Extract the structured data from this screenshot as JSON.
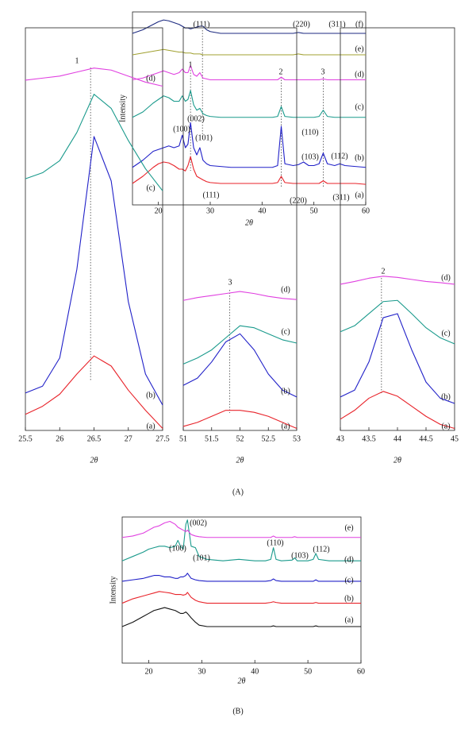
{
  "chart_data": [
    {
      "type": "line",
      "x_label": "2θ",
      "y_label": "Intensity",
      "xlim": [
        15,
        60
      ],
      "ylim": [
        -8,
        100
      ],
      "xticks": [
        20,
        30,
        40,
        50,
        60
      ],
      "x": [
        15,
        17,
        19,
        20,
        21,
        22,
        23,
        24,
        24.6,
        25.2,
        25.7,
        26.2,
        26.8,
        27.4,
        28,
        28.6,
        29.3,
        30,
        32,
        34,
        36,
        38,
        40,
        42,
        43,
        43.7,
        44.4,
        46,
        47,
        48,
        49,
        50,
        51,
        51.8,
        52.6,
        54,
        55,
        56,
        58,
        60
      ],
      "series": [
        {
          "name": "(a)",
          "color": "#e8232a",
          "values": [
            4,
            8,
            13,
            15,
            16,
            15.5,
            14,
            12,
            12,
            11,
            14,
            19,
            12,
            8,
            7,
            6,
            5,
            4.5,
            4,
            4,
            4,
            4,
            4,
            4,
            4.5,
            8,
            4.5,
            4,
            4,
            4,
            4,
            4,
            4,
            5.5,
            4,
            4,
            4,
            4,
            4,
            3.5
          ]
        },
        {
          "name": "(b)",
          "color": "#2020c8",
          "values": [
            13,
            17,
            22,
            23,
            24,
            25,
            24,
            25,
            31,
            24,
            26,
            38,
            24,
            20,
            24,
            17,
            15,
            14,
            13.5,
            13,
            13,
            13,
            13,
            13,
            14,
            36,
            15,
            14,
            14.5,
            16,
            14,
            14,
            15,
            21,
            15,
            14,
            15,
            14,
            13.5,
            13
          ]
        },
        {
          "name": "(c)",
          "color": "#1a9a8c",
          "values": [
            41,
            44,
            49,
            51,
            53,
            52,
            50,
            50,
            53,
            50,
            51,
            56,
            48,
            45,
            46,
            43,
            42,
            41.5,
            41,
            41,
            41,
            41,
            41,
            41,
            41.5,
            47,
            41.5,
            41,
            41,
            41,
            41,
            41,
            41.5,
            45,
            41.5,
            41,
            41,
            41,
            41,
            41
          ]
        },
        {
          "name": "(d)",
          "color": "#e040e0",
          "values": [
            62,
            63,
            65,
            66,
            67,
            66,
            65,
            66,
            68,
            66,
            66,
            70,
            65,
            64,
            66,
            63,
            62.5,
            62,
            62,
            62,
            62,
            62,
            62,
            62,
            62,
            63.5,
            62,
            62,
            62,
            62,
            62,
            62,
            62,
            62.5,
            62,
            62,
            62,
            62,
            62,
            62
          ]
        },
        {
          "name": "(e)",
          "color": "#a0a030",
          "values": [
            76,
            77,
            78,
            78.5,
            79,
            78.5,
            78,
            77.5,
            77.5,
            77,
            77,
            77,
            76.5,
            76.5,
            76.5,
            76,
            76,
            76,
            76,
            76,
            76,
            76,
            76,
            76,
            76,
            76,
            76,
            76,
            76.5,
            76,
            76,
            76,
            76,
            76,
            76,
            76,
            76,
            76,
            76,
            76
          ]
        },
        {
          "name": "(f)",
          "color": "#1c2a80",
          "values": [
            88,
            90,
            93,
            94.5,
            95.5,
            95,
            94,
            93,
            92,
            91,
            91,
            90.5,
            91,
            91.5,
            92,
            92,
            90,
            89,
            88,
            88,
            88,
            88,
            88,
            88,
            88,
            88,
            88,
            88,
            88.5,
            88,
            88,
            88,
            88,
            88,
            88,
            88,
            88,
            88,
            88,
            88
          ]
        }
      ],
      "ref_lines": [
        28.5,
        26.2,
        43.7,
        51.8
      ],
      "annotations": [
        "(111)",
        "(220)",
        "(311)",
        "1",
        "2",
        "3",
        "(002)",
        "(100)",
        "(101)",
        "(110)",
        "(103)",
        "(112)",
        "(111)",
        "(220)",
        "(311)"
      ]
    },
    {
      "type": "line",
      "x_label": "2θ",
      "xlim": [
        25.5,
        27.5
      ],
      "ylim": [
        0,
        100
      ],
      "xticks": [
        25.5,
        26,
        26.5,
        27,
        27.5
      ],
      "x": [
        25.5,
        25.75,
        26,
        26.25,
        26.5,
        26.75,
        27,
        27.25,
        27.5
      ],
      "series": [
        {
          "name": "(a)",
          "color": "#e8232a",
          "values": [
            4,
            6,
            9,
            14,
            18.5,
            16,
            10,
            5,
            0.5
          ]
        },
        {
          "name": "(b)",
          "color": "#2020c8",
          "values": [
            9.3,
            11,
            18,
            40,
            73,
            62,
            32,
            14,
            6.3
          ]
        },
        {
          "name": "(c)",
          "color": "#1a9a8c",
          "values": [
            62.5,
            64,
            67,
            74,
            83.5,
            80,
            72,
            65,
            59.5
          ]
        },
        {
          "name": "(d)",
          "color": "#e040e0",
          "values": [
            87,
            87.5,
            88,
            89,
            90,
            89.5,
            88,
            86.5,
            85.5
          ]
        }
      ],
      "ref_lines": [
        26.45
      ],
      "annotations": [
        "1"
      ]
    },
    {
      "type": "line",
      "x_label": "2θ",
      "xlim": [
        51,
        53
      ],
      "ylim": [
        0,
        100
      ],
      "xticks": [
        51,
        51.5,
        52,
        52.5,
        53
      ],
      "x": [
        51,
        51.25,
        51.5,
        51.75,
        52,
        52.25,
        52.5,
        52.75,
        53
      ],
      "series": [
        {
          "name": "(a)",
          "color": "#e8232a",
          "values": [
            1,
            2,
            3.5,
            5,
            5,
            4.5,
            3.5,
            2,
            0.5
          ]
        },
        {
          "name": "(b)",
          "color": "#2020c8",
          "values": [
            11.2,
            13,
            17,
            22,
            24,
            20,
            14,
            10,
            8.3
          ]
        },
        {
          "name": "(c)",
          "color": "#1a9a8c",
          "values": [
            16.5,
            18,
            20,
            23,
            26,
            25.5,
            24,
            22.5,
            21.7
          ]
        },
        {
          "name": "(d)",
          "color": "#e040e0",
          "values": [
            32.3,
            33,
            33.5,
            34,
            34.5,
            34,
            33.3,
            32.8,
            32.5
          ]
        }
      ],
      "ref_lines": [
        51.82
      ],
      "annotations": [
        "3"
      ]
    },
    {
      "type": "line",
      "x_label": "2θ",
      "xlim": [
        43,
        45
      ],
      "ylim": [
        0,
        100
      ],
      "xticks": [
        43,
        43.5,
        44,
        44.5,
        45
      ],
      "x": [
        43,
        43.25,
        43.5,
        43.75,
        44,
        44.25,
        44.5,
        44.75,
        45
      ],
      "series": [
        {
          "name": "(a)",
          "color": "#e8232a",
          "values": [
            2.8,
            5,
            8,
            9.7,
            8.5,
            6,
            3.5,
            1.5,
            0.5
          ]
        },
        {
          "name": "(b)",
          "color": "#2020c8",
          "values": [
            8.3,
            10,
            17,
            28,
            29,
            20,
            12,
            8,
            6.7
          ]
        },
        {
          "name": "(c)",
          "color": "#1a9a8c",
          "values": [
            24.5,
            26,
            29,
            32,
            32.3,
            29,
            25.5,
            23,
            21.5
          ]
        },
        {
          "name": "(d)",
          "color": "#e040e0",
          "values": [
            36.3,
            37,
            37.8,
            38.3,
            38,
            37.5,
            37,
            36.7,
            36.3
          ]
        }
      ],
      "ref_lines": [
        43.72
      ],
      "annotations": [
        "2"
      ]
    },
    {
      "type": "line",
      "x_label": "2θ",
      "y_label": "Intensity",
      "xlim": [
        15,
        60
      ],
      "ylim": [
        0,
        100
      ],
      "xticks": [
        20,
        30,
        40,
        50,
        60
      ],
      "x": [
        15,
        17,
        19,
        20,
        21,
        22,
        23,
        24,
        25,
        25.5,
        26,
        26.5,
        27,
        27.3,
        28,
        28.8,
        29.5,
        31,
        34,
        37,
        40,
        42,
        43,
        43.5,
        44,
        45,
        47,
        47.5,
        48,
        50,
        51,
        51.5,
        52,
        54,
        57,
        60
      ],
      "series": [
        {
          "name": "(a)",
          "color": "#111111",
          "values": [
            25,
            28,
            32,
            34,
            36,
            37,
            38,
            37,
            36,
            35,
            34,
            34,
            35,
            34,
            31,
            28,
            26,
            25,
            25,
            25,
            25,
            25,
            25,
            25.5,
            25,
            25,
            25,
            25,
            25,
            25,
            25,
            25.5,
            25,
            25,
            25,
            25
          ]
        },
        {
          "name": "(b)",
          "color": "#e8232a",
          "values": [
            41,
            44,
            46,
            47,
            48,
            49,
            48.5,
            48,
            47,
            47,
            47,
            46.5,
            47,
            48.4,
            45,
            43,
            42,
            41,
            41,
            41,
            41,
            41,
            41.5,
            42,
            41.5,
            41,
            41,
            41,
            41,
            41,
            41,
            41.5,
            41,
            41,
            41,
            41
          ]
        },
        {
          "name": "(c)",
          "color": "#2020c8",
          "values": [
            56,
            57,
            58,
            59,
            60,
            60,
            59,
            59,
            58,
            58,
            59,
            59,
            60,
            61.5,
            58,
            57,
            56.5,
            56,
            56,
            56,
            56,
            56,
            56.5,
            57.6,
            56.5,
            56,
            56,
            56,
            56,
            56,
            56,
            57,
            56,
            56,
            56,
            56
          ]
        },
        {
          "name": "(d)",
          "color": "#1a9a8c",
          "values": [
            70,
            73,
            76,
            78,
            79,
            80,
            80,
            79,
            80,
            84,
            80,
            78,
            95,
            98,
            80,
            79,
            73,
            71,
            70,
            71,
            70,
            70,
            71,
            79,
            71,
            70,
            70.5,
            72,
            70,
            70,
            71,
            75,
            71,
            70,
            70,
            70
          ]
        },
        {
          "name": "(e)",
          "color": "#e040e0",
          "values": [
            86,
            87,
            89,
            91,
            93,
            94,
            96,
            97,
            95,
            93,
            92,
            91,
            90,
            91,
            88,
            87,
            86.5,
            86,
            86,
            86,
            86,
            86,
            86,
            87,
            86,
            86,
            86,
            86.5,
            86,
            86,
            86,
            86,
            86,
            86,
            86,
            86
          ]
        }
      ],
      "ref_lines": [],
      "annotations": [
        "(100)",
        "(002)",
        "(101)",
        "(110)",
        "(103)",
        "(112)"
      ]
    }
  ],
  "panel_labels": [
    "(A)",
    "(B)"
  ]
}
